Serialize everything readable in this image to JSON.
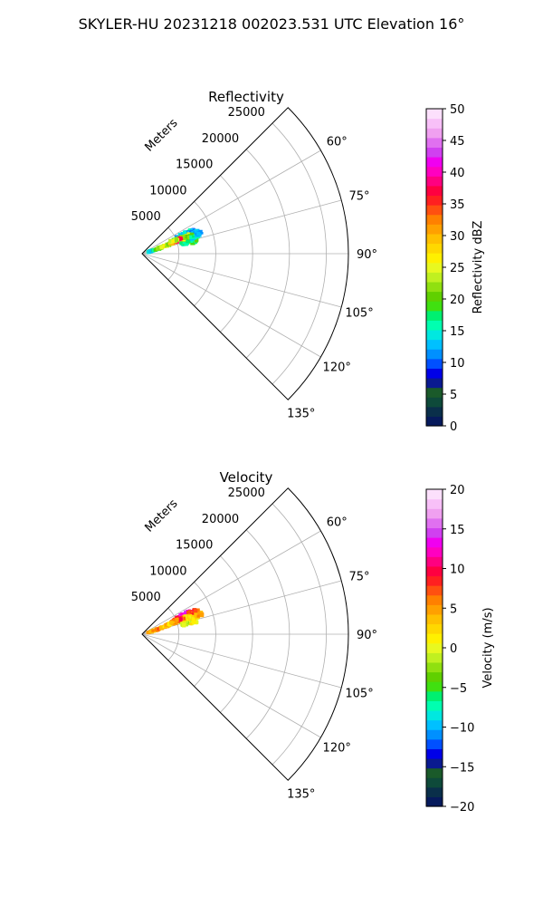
{
  "figure": {
    "suptitle": "SKYLER-HU  20231218  002023.531 UTC Elevation 16°"
  },
  "chart_data": [
    {
      "type": "heatmap",
      "subtype": "polar-sector-radar-ppi",
      "title": "Reflectivity",
      "r_axis_label": "Meters",
      "r_ticks": [
        5000,
        10000,
        15000,
        20000,
        25000
      ],
      "r_tick_labels": [
        "5000",
        "10000",
        "15000",
        "20000",
        "25000"
      ],
      "r_max": 28000,
      "theta_range_deg": [
        45,
        135
      ],
      "theta_ticks": [
        60,
        75,
        90,
        105,
        120,
        135
      ],
      "theta_tick_labels": [
        "60°",
        "75°",
        "90°",
        "105°",
        "120°",
        "135°"
      ],
      "grid": true,
      "colorbar": {
        "label": "Reflectivity dBZ",
        "min": 0,
        "max": 50,
        "ticks": [
          0,
          5,
          10,
          15,
          20,
          25,
          30,
          35,
          40,
          45,
          50
        ],
        "tick_labels": [
          "0",
          "5",
          "10",
          "15",
          "20",
          "25",
          "30",
          "35",
          "40",
          "45",
          "50"
        ],
        "colors": [
          "#061a5c",
          "#0a2f4a",
          "#0e4a3a",
          "#1a5a2a",
          "#0a1a90",
          "#0000e8",
          "#0050ff",
          "#0090ff",
          "#00c0ff",
          "#00e8e0",
          "#00ffb0",
          "#00f070",
          "#40e010",
          "#60d000",
          "#90e010",
          "#c0f020",
          "#e8f820",
          "#fff000",
          "#ffd800",
          "#ffc000",
          "#ffa000",
          "#ff8000",
          "#ff5010",
          "#ff2020",
          "#ff0040",
          "#ff0080",
          "#ff00c0",
          "#f000f0",
          "#d040f0",
          "#e070f0",
          "#f0a0f0",
          "#f8c0f8",
          "#fce0fc"
        ]
      },
      "echo_regions": [
        {
          "r": 1300,
          "theta": 74.5,
          "value": 16
        },
        {
          "r": 1600,
          "theta": 73.5,
          "value": 14
        },
        {
          "r": 2000,
          "theta": 73.0,
          "value": 18
        },
        {
          "r": 2400,
          "theta": 72.5,
          "value": 20
        },
        {
          "r": 2800,
          "theta": 72.0,
          "value": 22
        },
        {
          "r": 3200,
          "theta": 71.5,
          "value": 25
        },
        {
          "r": 3600,
          "theta": 71.0,
          "value": 26
        },
        {
          "r": 4000,
          "theta": 70.5,
          "value": 22
        },
        {
          "r": 4400,
          "theta": 70.5,
          "value": 28
        },
        {
          "r": 4800,
          "theta": 69.5,
          "value": 30
        },
        {
          "r": 5200,
          "theta": 70.0,
          "value": 33
        },
        {
          "r": 5600,
          "theta": 71.0,
          "value": 36
        },
        {
          "r": 6000,
          "theta": 72.5,
          "value": 31
        },
        {
          "r": 6400,
          "theta": 74.0,
          "value": 27
        },
        {
          "r": 6800,
          "theta": 75.5,
          "value": 22
        },
        {
          "r": 7200,
          "theta": 77.0,
          "value": 18
        },
        {
          "r": 5000,
          "theta": 66.5,
          "value": 19
        },
        {
          "r": 5600,
          "theta": 65.5,
          "value": 12
        },
        {
          "r": 6200,
          "theta": 64.5,
          "value": 14
        },
        {
          "r": 6800,
          "theta": 65.0,
          "value": 16
        },
        {
          "r": 7400,
          "theta": 66.5,
          "value": 11
        },
        {
          "r": 7800,
          "theta": 68.0,
          "value": 13
        },
        {
          "r": 6500,
          "theta": 69.0,
          "value": 24
        },
        {
          "r": 7000,
          "theta": 70.5,
          "value": 20
        },
        {
          "r": 5800,
          "theta": 68.0,
          "value": 23
        },
        {
          "r": 7500,
          "theta": 72.5,
          "value": 15
        },
        {
          "r": 8200,
          "theta": 71.0,
          "value": 12
        },
        {
          "r": 5300,
          "theta": 68.5,
          "value": 38
        },
        {
          "r": 4700,
          "theta": 67.5,
          "value": 24
        },
        {
          "r": 6000,
          "theta": 76.5,
          "value": 17
        }
      ]
    },
    {
      "type": "heatmap",
      "subtype": "polar-sector-radar-ppi",
      "title": "Velocity",
      "r_axis_label": "Meters",
      "r_ticks": [
        5000,
        10000,
        15000,
        20000,
        25000
      ],
      "r_tick_labels": [
        "5000",
        "10000",
        "15000",
        "20000",
        "25000"
      ],
      "r_max": 28000,
      "theta_range_deg": [
        45,
        135
      ],
      "theta_ticks": [
        60,
        75,
        90,
        105,
        120,
        135
      ],
      "theta_tick_labels": [
        "60°",
        "75°",
        "90°",
        "105°",
        "120°",
        "135°"
      ],
      "grid": true,
      "colorbar": {
        "label": "Velocity (m/s)",
        "min": -20,
        "max": 20,
        "ticks": [
          -20,
          -15,
          -10,
          -5,
          0,
          5,
          10,
          15,
          20
        ],
        "tick_labels": [
          "−20",
          "−15",
          "−10",
          "−5",
          "0",
          "5",
          "10",
          "15",
          "20"
        ],
        "colors": [
          "#061a5c",
          "#0a2f4a",
          "#0e4a3a",
          "#1a5a2a",
          "#0a1a90",
          "#0000e8",
          "#0050ff",
          "#0090ff",
          "#00c0ff",
          "#00e8e0",
          "#00ffb0",
          "#00f070",
          "#40e010",
          "#60d000",
          "#90e010",
          "#c0f020",
          "#e8f820",
          "#fff000",
          "#ffd800",
          "#ffc000",
          "#ffa000",
          "#ff8000",
          "#ff5010",
          "#ff2020",
          "#ff0040",
          "#ff0080",
          "#ff00c0",
          "#f000f0",
          "#d040f0",
          "#e070f0",
          "#f0a0f0",
          "#f8c0f8",
          "#fce0fc"
        ]
      },
      "echo_regions": [
        {
          "r": 1300,
          "theta": 74.5,
          "value": 6
        },
        {
          "r": 1600,
          "theta": 73.5,
          "value": 5
        },
        {
          "r": 2000,
          "theta": 73.0,
          "value": 4
        },
        {
          "r": 2400,
          "theta": 72.5,
          "value": 5
        },
        {
          "r": 2800,
          "theta": 72.0,
          "value": 6
        },
        {
          "r": 3200,
          "theta": 71.5,
          "value": 4
        },
        {
          "r": 3600,
          "theta": 71.0,
          "value": 3
        },
        {
          "r": 4000,
          "theta": 70.5,
          "value": 5
        },
        {
          "r": 4400,
          "theta": 70.5,
          "value": 2
        },
        {
          "r": 4800,
          "theta": 69.5,
          "value": 4
        },
        {
          "r": 5200,
          "theta": 70.0,
          "value": 6
        },
        {
          "r": 5600,
          "theta": 71.0,
          "value": 1
        },
        {
          "r": 6000,
          "theta": 72.5,
          "value": 0
        },
        {
          "r": 6400,
          "theta": 74.0,
          "value": 1
        },
        {
          "r": 6800,
          "theta": 75.5,
          "value": 0
        },
        {
          "r": 7200,
          "theta": 77.0,
          "value": 1
        },
        {
          "r": 5000,
          "theta": 66.5,
          "value": 7
        },
        {
          "r": 5600,
          "theta": 65.5,
          "value": 11
        },
        {
          "r": 6200,
          "theta": 64.5,
          "value": 14
        },
        {
          "r": 6800,
          "theta": 65.0,
          "value": 12
        },
        {
          "r": 7400,
          "theta": 66.5,
          "value": 9
        },
        {
          "r": 7800,
          "theta": 68.0,
          "value": 7
        },
        {
          "r": 6500,
          "theta": 69.0,
          "value": 3
        },
        {
          "r": 7000,
          "theta": 70.5,
          "value": 2
        },
        {
          "r": 5800,
          "theta": 68.0,
          "value": 6
        },
        {
          "r": 7500,
          "theta": 72.5,
          "value": 1
        },
        {
          "r": 8200,
          "theta": 71.0,
          "value": 5
        },
        {
          "r": 5300,
          "theta": 68.5,
          "value": 9
        },
        {
          "r": 4700,
          "theta": 67.5,
          "value": 5
        },
        {
          "r": 6000,
          "theta": 76.5,
          "value": -1
        }
      ]
    }
  ]
}
